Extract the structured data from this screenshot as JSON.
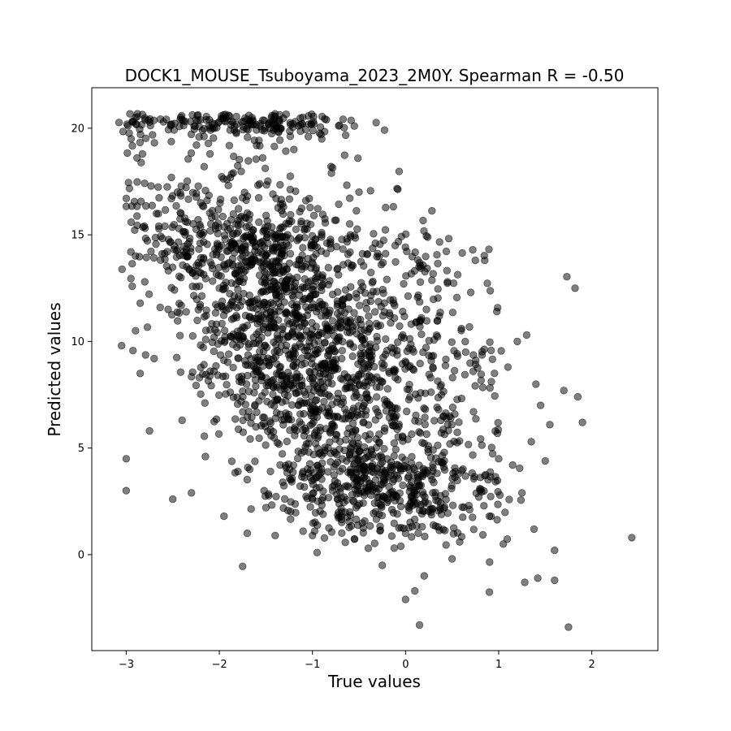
{
  "chart_data": {
    "type": "scatter",
    "title": "DOCK1_MOUSE_Tsuboyama_2023_2M0Y. Spearman R = -0.50",
    "xlabel": "True values",
    "ylabel": "Predicted values",
    "xlim": [
      -3.37,
      2.71
    ],
    "ylim": [
      -4.5,
      21.9
    ],
    "xticks": [
      -3,
      -2,
      -1,
      0,
      1,
      2
    ],
    "xtick_labels": [
      "−3",
      "−2",
      "−1",
      "0",
      "1",
      "2"
    ],
    "yticks": [
      0,
      5,
      10,
      15,
      20
    ],
    "ytick_labels": [
      "0",
      "5",
      "10",
      "15",
      "20"
    ],
    "grid": false,
    "marker_color": "#000000",
    "marker_alpha": 0.5,
    "n_points": 2600,
    "spearman_r": -0.5,
    "distribution_note_clusters": [
      {
        "x": -1.7,
        "y": 20.2,
        "weight": 0.05
      },
      {
        "x": -1.7,
        "y": 15.2,
        "weight": 0.06
      },
      {
        "x": -1.6,
        "y": 14.0,
        "weight": 0.07
      },
      {
        "x": -1.4,
        "y": 12.0,
        "weight": 0.08
      },
      {
        "x": -1.2,
        "y": 10.3,
        "weight": 0.08
      },
      {
        "x": -1.2,
        "y": 8.5,
        "weight": 0.09
      },
      {
        "x": -0.8,
        "y": 6.5,
        "weight": 0.09
      },
      {
        "x": -0.5,
        "y": 4.0,
        "weight": 0.1
      },
      {
        "x": -0.2,
        "y": 2.5,
        "weight": 0.1
      },
      {
        "x": 0.1,
        "y": 13.4,
        "weight": 0.02
      },
      {
        "x": 0.2,
        "y": 9.8,
        "weight": 0.02
      }
    ]
  },
  "points": [
    [
      -3.05,
      9.8
    ],
    [
      -3.0,
      4.5
    ],
    [
      -3.0,
      3.0
    ],
    [
      -2.95,
      14.2
    ],
    [
      -2.9,
      10.5
    ],
    [
      -2.85,
      8.5
    ],
    [
      -2.8,
      12.8
    ],
    [
      -2.75,
      5.8
    ],
    [
      -2.7,
      9.2
    ],
    [
      -2.65,
      15.4
    ],
    [
      -2.6,
      20.3
    ],
    [
      -2.55,
      11.5
    ],
    [
      -2.5,
      2.6
    ],
    [
      -2.45,
      17.0
    ],
    [
      -2.4,
      6.3
    ],
    [
      -2.35,
      13.5
    ],
    [
      -2.3,
      2.9
    ],
    [
      -2.25,
      20.4
    ],
    [
      -2.2,
      16.5
    ],
    [
      -2.15,
      4.6
    ],
    [
      -2.1,
      18.8
    ],
    [
      -2.0,
      12.5
    ],
    [
      -1.95,
      1.8
    ],
    [
      -1.9,
      20.6
    ],
    [
      -1.85,
      17.9
    ],
    [
      -1.8,
      3.9
    ],
    [
      -1.75,
      -0.55
    ],
    [
      -1.7,
      1.0
    ],
    [
      -1.65,
      20.5
    ],
    [
      -1.6,
      19.2
    ],
    [
      -1.5,
      2.2
    ],
    [
      -1.4,
      0.9
    ],
    [
      -1.35,
      20.0
    ],
    [
      -1.2,
      19.0
    ],
    [
      -1.1,
      1.1
    ],
    [
      -1.0,
      0.9
    ],
    [
      -0.95,
      0.1
    ],
    [
      -0.9,
      19.5
    ],
    [
      -0.85,
      20.4
    ],
    [
      -0.8,
      18.2
    ],
    [
      -0.55,
      20.1
    ],
    [
      -0.5,
      17.0
    ],
    [
      -0.4,
      0.3
    ],
    [
      -0.25,
      -0.5
    ],
    [
      -0.05,
      0.4
    ],
    [
      0.0,
      -2.1
    ],
    [
      0.1,
      -1.7
    ],
    [
      0.15,
      -3.3
    ],
    [
      0.2,
      -1.0
    ],
    [
      0.35,
      1.3
    ],
    [
      0.5,
      -0.2
    ],
    [
      0.45,
      12.8
    ],
    [
      0.6,
      10.6
    ],
    [
      0.7,
      12.3
    ],
    [
      0.8,
      3.0
    ],
    [
      0.85,
      13.8
    ],
    [
      0.9,
      1.8
    ],
    [
      0.98,
      11.4
    ],
    [
      1.0,
      4.5
    ],
    [
      1.05,
      0.5
    ],
    [
      1.1,
      8.8
    ],
    [
      1.15,
      4.2
    ],
    [
      1.2,
      10.0
    ],
    [
      1.25,
      2.9
    ],
    [
      1.28,
      -1.3
    ],
    [
      1.3,
      10.3
    ],
    [
      1.35,
      5.3
    ],
    [
      1.38,
      1.2
    ],
    [
      1.4,
      8.0
    ],
    [
      1.42,
      -1.1
    ],
    [
      1.45,
      7.0
    ],
    [
      1.5,
      4.4
    ],
    [
      1.55,
      6.1
    ],
    [
      1.6,
      0.2
    ],
    [
      1.6,
      -1.2
    ],
    [
      1.7,
      7.7
    ],
    [
      1.75,
      -3.4
    ],
    [
      1.82,
      12.5
    ],
    [
      1.85,
      7.4
    ],
    [
      1.9,
      6.2
    ],
    [
      2.43,
      0.8
    ]
  ]
}
